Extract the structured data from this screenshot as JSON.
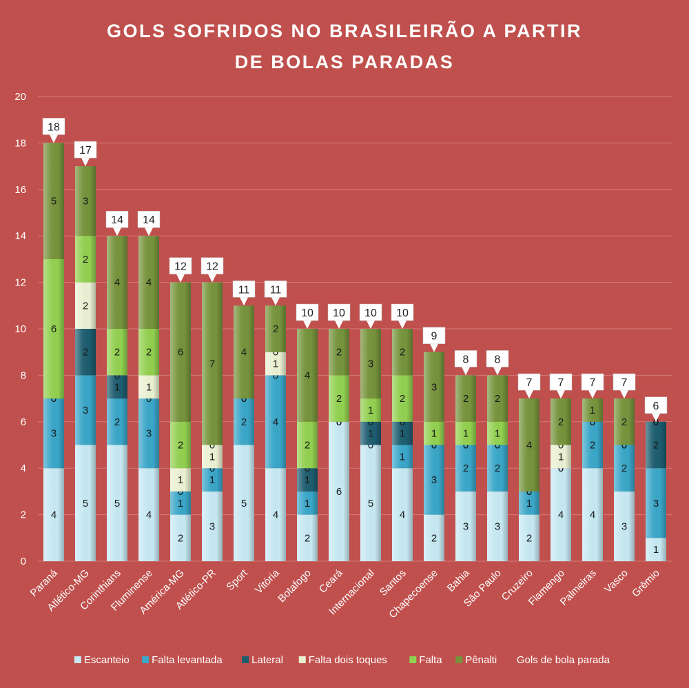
{
  "chart_data": {
    "type": "bar",
    "stacked": true,
    "title_lines": [
      "GOLS SOFRIDOS NO BRASILEIRÃO A PARTIR",
      "DE BOLAS PARADAS"
    ],
    "xlabel": "",
    "ylabel": "",
    "ylim": [
      0,
      20
    ],
    "yticks": [
      0,
      2,
      4,
      6,
      8,
      10,
      12,
      14,
      16,
      18,
      20
    ],
    "grid": true,
    "legend_position": "bottom",
    "categories": [
      "Paraná",
      "Atlético-MG",
      "Corinthians",
      "Fluminense",
      "América-MG",
      "Atlético-PR",
      "Sport",
      "Vitória",
      "Botafogo",
      "Ceará",
      "Internacional",
      "Santos",
      "Chapecoense",
      "Bahia",
      "São Paulo",
      "Cruzeiro",
      "Flamengo",
      "Palmeiras",
      "Vasco",
      "Grêmio"
    ],
    "series": [
      {
        "name": "Escanteio",
        "color": "#c6e8f2",
        "values": [
          4,
          5,
          5,
          4,
          2,
          3,
          5,
          4,
          2,
          6,
          5,
          4,
          2,
          3,
          3,
          2,
          4,
          4,
          3,
          1
        ]
      },
      {
        "name": "Falta levantada",
        "color": "#3aa6c8",
        "values": [
          3,
          3,
          2,
          3,
          1,
          1,
          2,
          4,
          1,
          0,
          0,
          1,
          3,
          2,
          2,
          1,
          0,
          2,
          2,
          3
        ]
      },
      {
        "name": "Lateral",
        "color": "#1d5d6f",
        "values": [
          0,
          2,
          1,
          0,
          0,
          0,
          0,
          0,
          1,
          0,
          1,
          1,
          0,
          0,
          0,
          0,
          0,
          0,
          0,
          2
        ]
      },
      {
        "name": "Falta dois toques",
        "color": "#eaf0d2",
        "values": [
          0,
          2,
          0,
          1,
          1,
          1,
          0,
          1,
          0,
          0,
          0,
          0,
          0,
          0,
          0,
          0,
          1,
          0,
          0,
          0
        ]
      },
      {
        "name": "Falta",
        "color": "#92d050",
        "values": [
          6,
          2,
          2,
          2,
          2,
          0,
          0,
          0,
          2,
          2,
          1,
          2,
          1,
          1,
          1,
          0,
          0,
          0,
          0,
          0
        ]
      },
      {
        "name": "Pênalti",
        "color": "#76933c",
        "values": [
          5,
          3,
          4,
          4,
          6,
          7,
          4,
          2,
          4,
          2,
          3,
          2,
          3,
          2,
          2,
          4,
          2,
          1,
          2,
          0
        ]
      }
    ],
    "totals_name": "Gols de bola parada",
    "totals": [
      18,
      17,
      14,
      14,
      12,
      12,
      11,
      11,
      10,
      10,
      10,
      10,
      9,
      8,
      8,
      7,
      7,
      7,
      7,
      6
    ]
  },
  "colors": {
    "background": "#c0504d",
    "text": "#ffffff",
    "grid": "#d27b79",
    "segment_label": "#1a1a1a"
  }
}
